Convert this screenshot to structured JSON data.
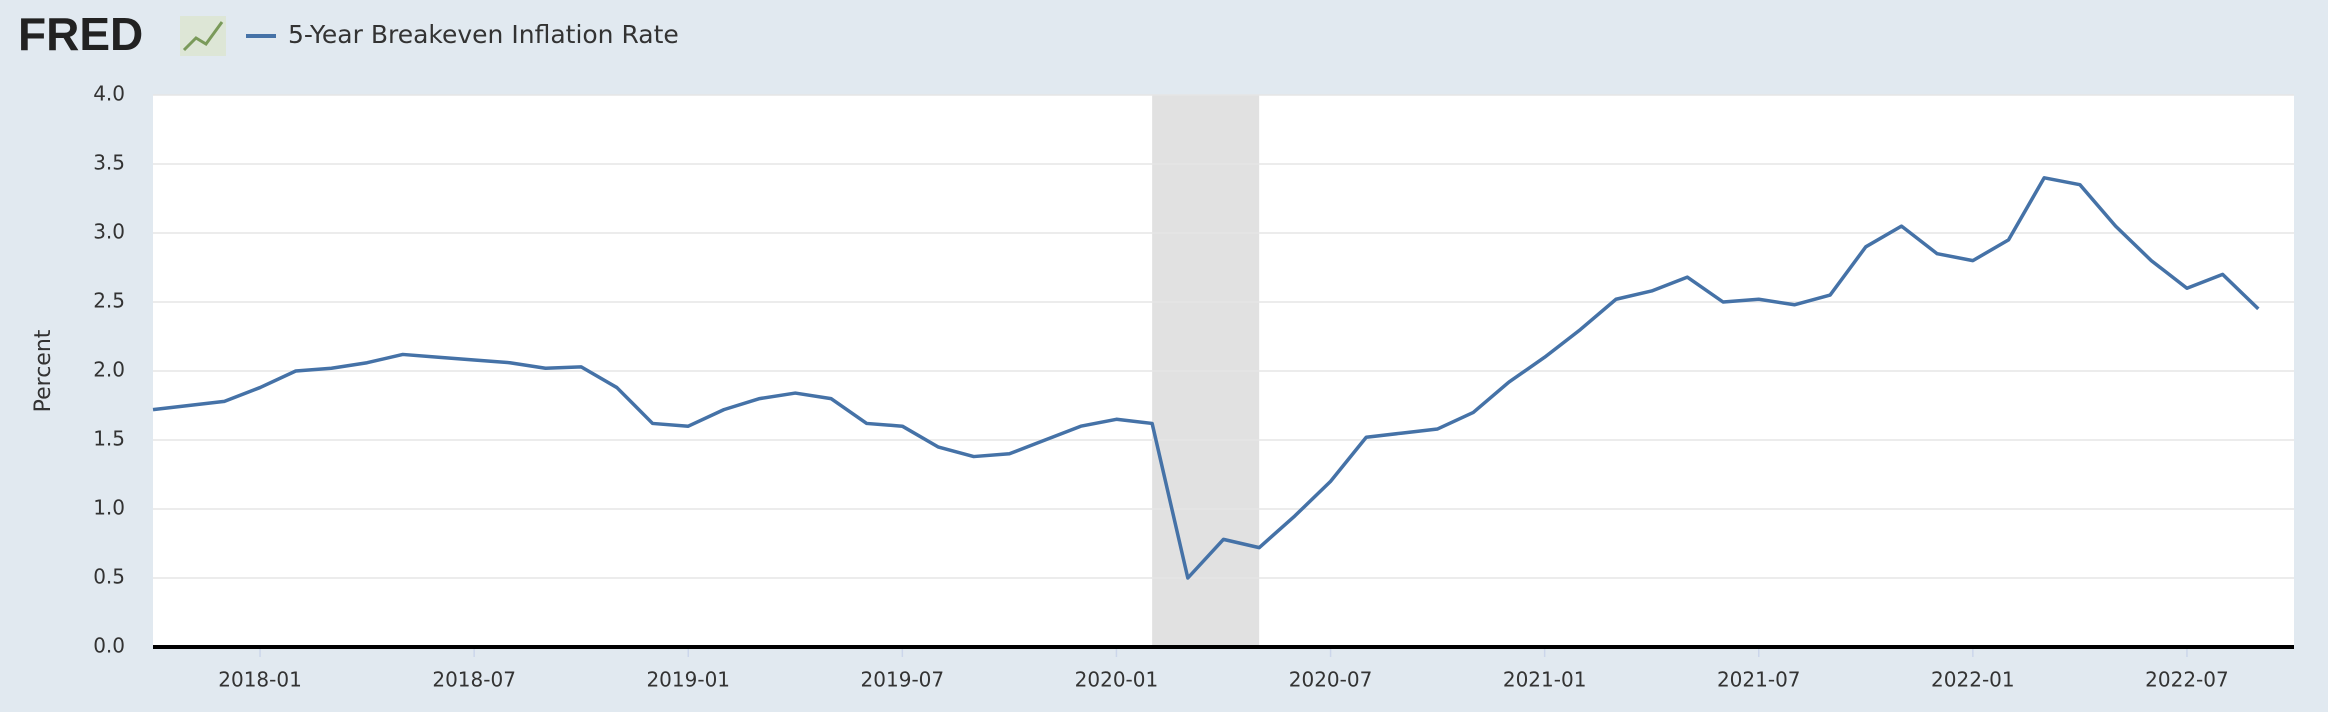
{
  "header": {
    "logo": "FRED"
  },
  "chart_data": {
    "type": "line",
    "y_label": "Percent",
    "x": [
      "2017-10",
      "2017-11",
      "2017-12",
      "2018-01",
      "2018-02",
      "2018-03",
      "2018-04",
      "2018-05",
      "2018-06",
      "2018-07",
      "2018-08",
      "2018-09",
      "2018-10",
      "2018-11",
      "2018-12",
      "2019-01",
      "2019-02",
      "2019-03",
      "2019-04",
      "2019-05",
      "2019-06",
      "2019-07",
      "2019-08",
      "2019-09",
      "2019-10",
      "2019-11",
      "2019-12",
      "2020-01",
      "2020-02",
      "2020-03",
      "2020-04",
      "2020-05",
      "2020-06",
      "2020-07",
      "2020-08",
      "2020-09",
      "2020-10",
      "2020-11",
      "2020-12",
      "2021-01",
      "2021-02",
      "2021-03",
      "2021-04",
      "2021-05",
      "2021-06",
      "2021-07",
      "2021-08",
      "2021-09",
      "2021-10",
      "2021-11",
      "2021-12",
      "2022-01",
      "2022-02",
      "2022-03",
      "2022-04",
      "2022-05",
      "2022-06",
      "2022-07",
      "2022-08",
      "2022-09"
    ],
    "series": [
      {
        "name": "5-Year Breakeven Inflation Rate",
        "color": "#4572a7",
        "values": [
          1.72,
          1.75,
          1.78,
          1.88,
          2.0,
          2.02,
          2.06,
          2.12,
          2.1,
          2.08,
          2.06,
          2.02,
          2.03,
          1.88,
          1.62,
          1.6,
          1.72,
          1.8,
          1.84,
          1.8,
          1.62,
          1.6,
          1.45,
          1.38,
          1.4,
          1.5,
          1.6,
          1.65,
          1.62,
          0.5,
          0.78,
          0.72,
          0.95,
          1.2,
          1.52,
          1.55,
          1.58,
          1.7,
          1.92,
          2.1,
          2.3,
          2.52,
          2.58,
          2.68,
          2.5,
          2.52,
          2.48,
          2.55,
          2.9,
          3.05,
          2.85,
          2.8,
          2.95,
          3.4,
          3.35,
          3.05,
          2.8,
          2.6,
          2.7,
          2.45
        ]
      }
    ],
    "xlim": [
      "2017-10",
      "2022-10"
    ],
    "xticks": [
      "2018-01",
      "2018-07",
      "2019-01",
      "2019-07",
      "2020-01",
      "2020-07",
      "2021-01",
      "2021-07",
      "2022-01",
      "2022-07"
    ],
    "ylim": [
      0,
      4
    ],
    "yticks": [
      {
        "value": 0,
        "label": "0.0"
      },
      0.5,
      {
        "value": 1,
        "label": "1.0"
      },
      1.5,
      {
        "value": 2,
        "label": "2.0"
      },
      2.5,
      {
        "value": 3,
        "label": "3.0"
      },
      3.5,
      {
        "value": 4,
        "label": "4.0"
      }
    ],
    "grid": true,
    "shaded": {
      "start": "2020-02",
      "end": "2020-04",
      "color": "#e1e1e1"
    }
  }
}
